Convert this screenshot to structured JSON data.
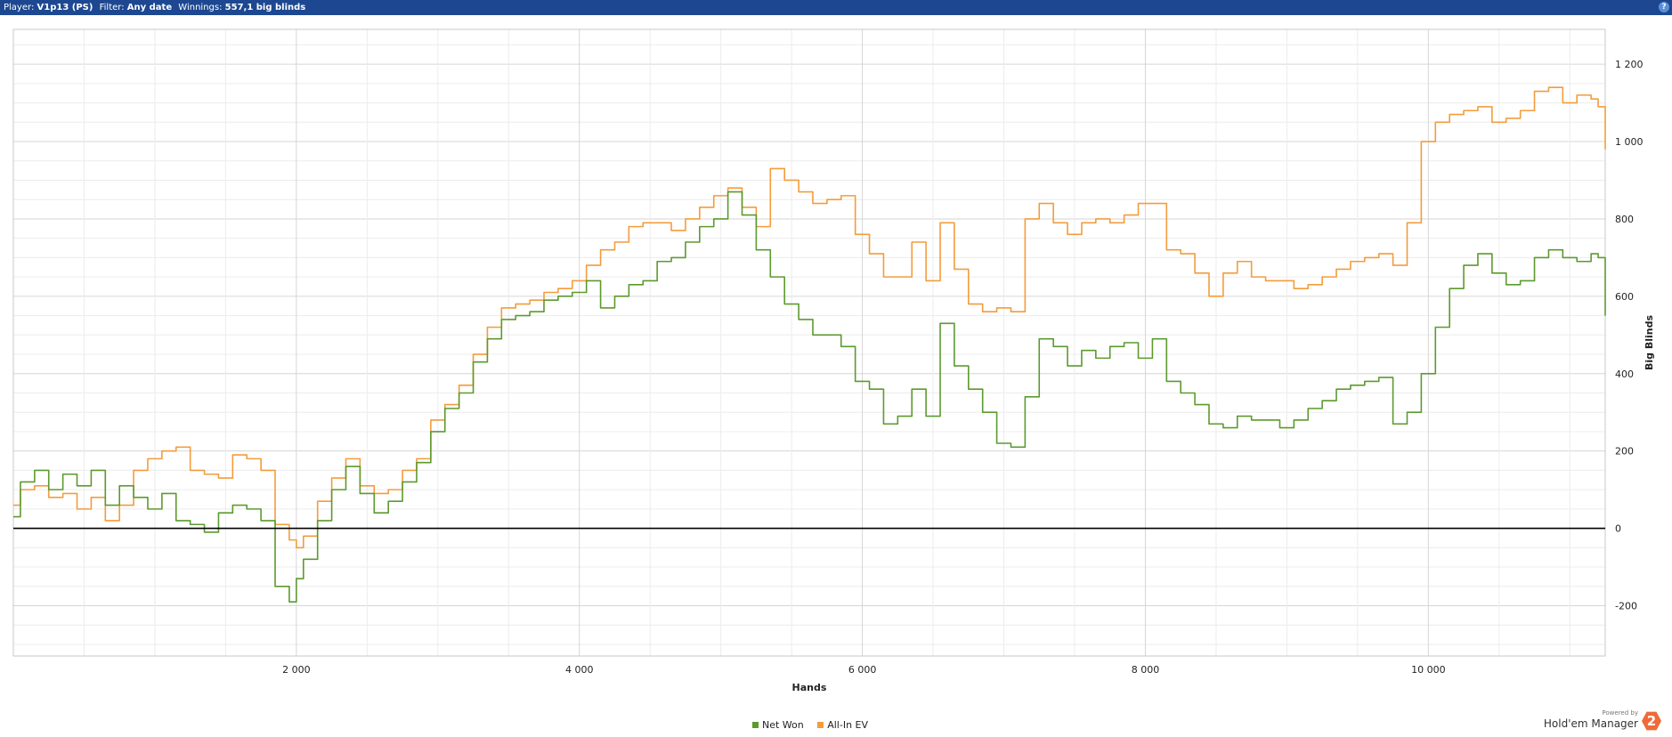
{
  "header": {
    "player_label": "Player:",
    "player_value": "V1p13 (PS)",
    "filter_label": "Filter:",
    "filter_value": "Any date",
    "winnings_label": "Winnings:",
    "winnings_value": "557,1 big blinds",
    "help_glyph": "?"
  },
  "brand": {
    "powered_by": "Powered by",
    "name": "Hold'em Manager",
    "logo_text": "2"
  },
  "chart_data": {
    "type": "line",
    "xlabel": "Hands",
    "ylabel": "Big Blinds",
    "xlim": [
      0,
      11250
    ],
    "ylim": [
      -330,
      1290
    ],
    "x_ticks": [
      2000,
      4000,
      6000,
      8000,
      10000
    ],
    "x_tick_labels": [
      "2 000",
      "4 000",
      "6 000",
      "8 000",
      "10 000"
    ],
    "y_ticks": [
      -200,
      0,
      200,
      400,
      600,
      800,
      1000,
      1200
    ],
    "y_tick_labels": [
      "-200",
      "0",
      "200",
      "400",
      "600",
      "800",
      "1 000",
      "1 200"
    ],
    "grid": true,
    "legend_position": "bottom",
    "series": [
      {
        "name": "Net Won",
        "color": "#5c9a2e",
        "x": [
          0,
          50,
          150,
          250,
          350,
          450,
          550,
          650,
          750,
          850,
          950,
          1050,
          1150,
          1250,
          1350,
          1450,
          1550,
          1650,
          1750,
          1850,
          1950,
          2000,
          2050,
          2150,
          2250,
          2350,
          2450,
          2550,
          2650,
          2750,
          2850,
          2950,
          3050,
          3150,
          3250,
          3350,
          3450,
          3550,
          3650,
          3750,
          3850,
          3950,
          4050,
          4150,
          4250,
          4350,
          4450,
          4550,
          4650,
          4750,
          4850,
          4950,
          5050,
          5150,
          5250,
          5350,
          5450,
          5550,
          5650,
          5750,
          5850,
          5950,
          6050,
          6150,
          6250,
          6350,
          6450,
          6550,
          6650,
          6750,
          6850,
          6950,
          7050,
          7150,
          7250,
          7350,
          7450,
          7550,
          7650,
          7750,
          7850,
          7950,
          8050,
          8150,
          8250,
          8350,
          8450,
          8550,
          8650,
          8750,
          8850,
          8950,
          9050,
          9150,
          9250,
          9350,
          9450,
          9550,
          9650,
          9750,
          9850,
          9950,
          10050,
          10150,
          10250,
          10350,
          10450,
          10550,
          10650,
          10750,
          10850,
          10950,
          11050,
          11150,
          11200,
          11250
        ],
        "y": [
          30,
          120,
          150,
          100,
          140,
          110,
          150,
          60,
          110,
          80,
          50,
          90,
          20,
          10,
          -10,
          40,
          60,
          50,
          20,
          -150,
          -190,
          -130,
          -80,
          20,
          100,
          160,
          90,
          40,
          70,
          120,
          170,
          250,
          310,
          350,
          430,
          490,
          540,
          550,
          560,
          590,
          600,
          610,
          640,
          570,
          600,
          630,
          640,
          690,
          700,
          740,
          780,
          800,
          870,
          810,
          720,
          650,
          580,
          540,
          500,
          500,
          470,
          380,
          360,
          270,
          290,
          360,
          290,
          530,
          420,
          360,
          300,
          220,
          210,
          340,
          490,
          470,
          420,
          460,
          440,
          470,
          480,
          440,
          490,
          380,
          350,
          320,
          270,
          260,
          290,
          280,
          280,
          260,
          280,
          310,
          330,
          360,
          370,
          380,
          390,
          270,
          300,
          400,
          520,
          620,
          680,
          710,
          660,
          630,
          640,
          700,
          720,
          700,
          690,
          710,
          700,
          550
        ],
        "x_net": []
      },
      {
        "name": "All-In EV",
        "color": "#f39c3c",
        "x": [
          0,
          50,
          150,
          250,
          350,
          450,
          550,
          650,
          750,
          850,
          950,
          1050,
          1150,
          1250,
          1350,
          1450,
          1550,
          1650,
          1750,
          1850,
          1950,
          2000,
          2050,
          2150,
          2250,
          2350,
          2450,
          2550,
          2650,
          2750,
          2850,
          2950,
          3050,
          3150,
          3250,
          3350,
          3450,
          3550,
          3650,
          3750,
          3850,
          3950,
          4050,
          4150,
          4250,
          4350,
          4450,
          4550,
          4650,
          4750,
          4850,
          4950,
          5050,
          5150,
          5250,
          5350,
          5450,
          5550,
          5650,
          5750,
          5850,
          5950,
          6050,
          6150,
          6250,
          6350,
          6450,
          6550,
          6650,
          6750,
          6850,
          6950,
          7050,
          7150,
          7250,
          7350,
          7450,
          7550,
          7650,
          7750,
          7850,
          7950,
          8050,
          8150,
          8250,
          8350,
          8450,
          8550,
          8650,
          8750,
          8850,
          8950,
          9050,
          9150,
          9250,
          9350,
          9450,
          9550,
          9650,
          9750,
          9850,
          9950,
          10050,
          10150,
          10250,
          10350,
          10450,
          10550,
          10650,
          10750,
          10850,
          10950,
          11050,
          11150,
          11200,
          11250
        ],
        "y": [
          60,
          100,
          110,
          80,
          90,
          50,
          80,
          20,
          60,
          150,
          180,
          200,
          210,
          150,
          140,
          130,
          190,
          180,
          150,
          10,
          -30,
          -50,
          -20,
          70,
          130,
          180,
          110,
          90,
          100,
          150,
          180,
          280,
          320,
          370,
          450,
          520,
          570,
          580,
          590,
          610,
          620,
          640,
          680,
          720,
          740,
          780,
          790,
          790,
          770,
          800,
          830,
          860,
          880,
          830,
          780,
          930,
          900,
          870,
          840,
          850,
          860,
          760,
          710,
          650,
          650,
          740,
          640,
          790,
          670,
          580,
          560,
          570,
          560,
          800,
          840,
          790,
          760,
          790,
          800,
          790,
          810,
          840,
          840,
          720,
          710,
          660,
          600,
          660,
          690,
          650,
          640,
          640,
          620,
          630,
          650,
          670,
          690,
          700,
          710,
          680,
          790,
          1000,
          1050,
          1070,
          1080,
          1090,
          1050,
          1060,
          1080,
          1130,
          1140,
          1100,
          1120,
          1110,
          1090,
          980
        ]
      }
    ]
  }
}
